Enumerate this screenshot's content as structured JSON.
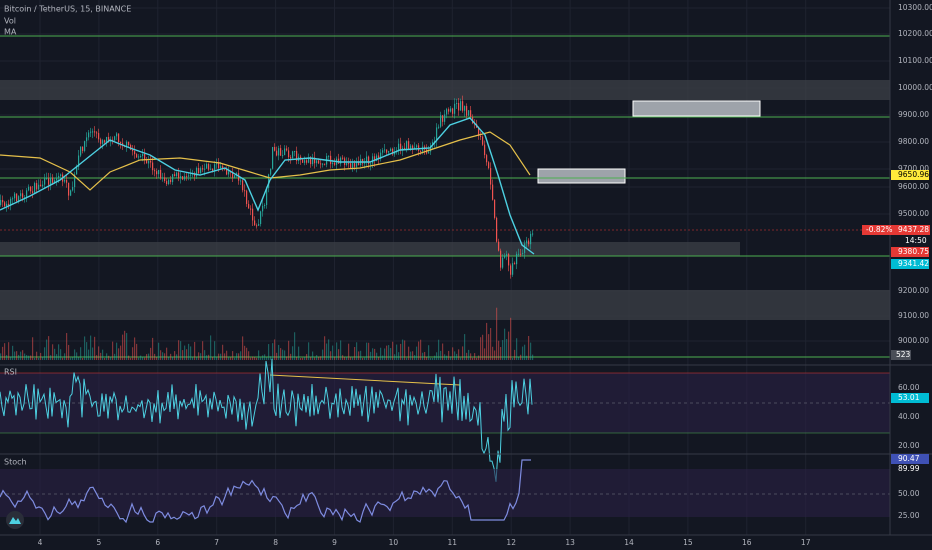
{
  "header": {
    "symbol": "Bitcoin / TetherUS, 15, BINANCE",
    "indicators": [
      "Vol",
      "MA"
    ]
  },
  "price_axis": [
    "10300.00",
    "10200.00",
    "10100.00",
    "10000.00",
    "9900.00",
    "9800.00",
    "9700.00",
    "9600.00",
    "9500.00",
    "9200.00",
    "9100.00",
    "9000.00"
  ],
  "price_tags": {
    "ma": "9650.96",
    "change": "-0.82%",
    "last": "9437.28",
    "countdown": "14:50",
    "ma_fast": "9380.75",
    "ma_slow": "9341.42",
    "volume": "523"
  },
  "rsi": {
    "title": "RSI",
    "axis": [
      "60.00",
      "40.00",
      "20.00"
    ],
    "value": "53.01"
  },
  "stoch": {
    "title": "Stoch",
    "axis": [
      "50.00",
      "25.00"
    ],
    "values": [
      "90.47",
      "89.99"
    ]
  },
  "time_axis": [
    "4",
    "5",
    "6",
    "7",
    "8",
    "9",
    "10",
    "11",
    "12",
    "13",
    "14",
    "15",
    "16",
    "17"
  ]
}
